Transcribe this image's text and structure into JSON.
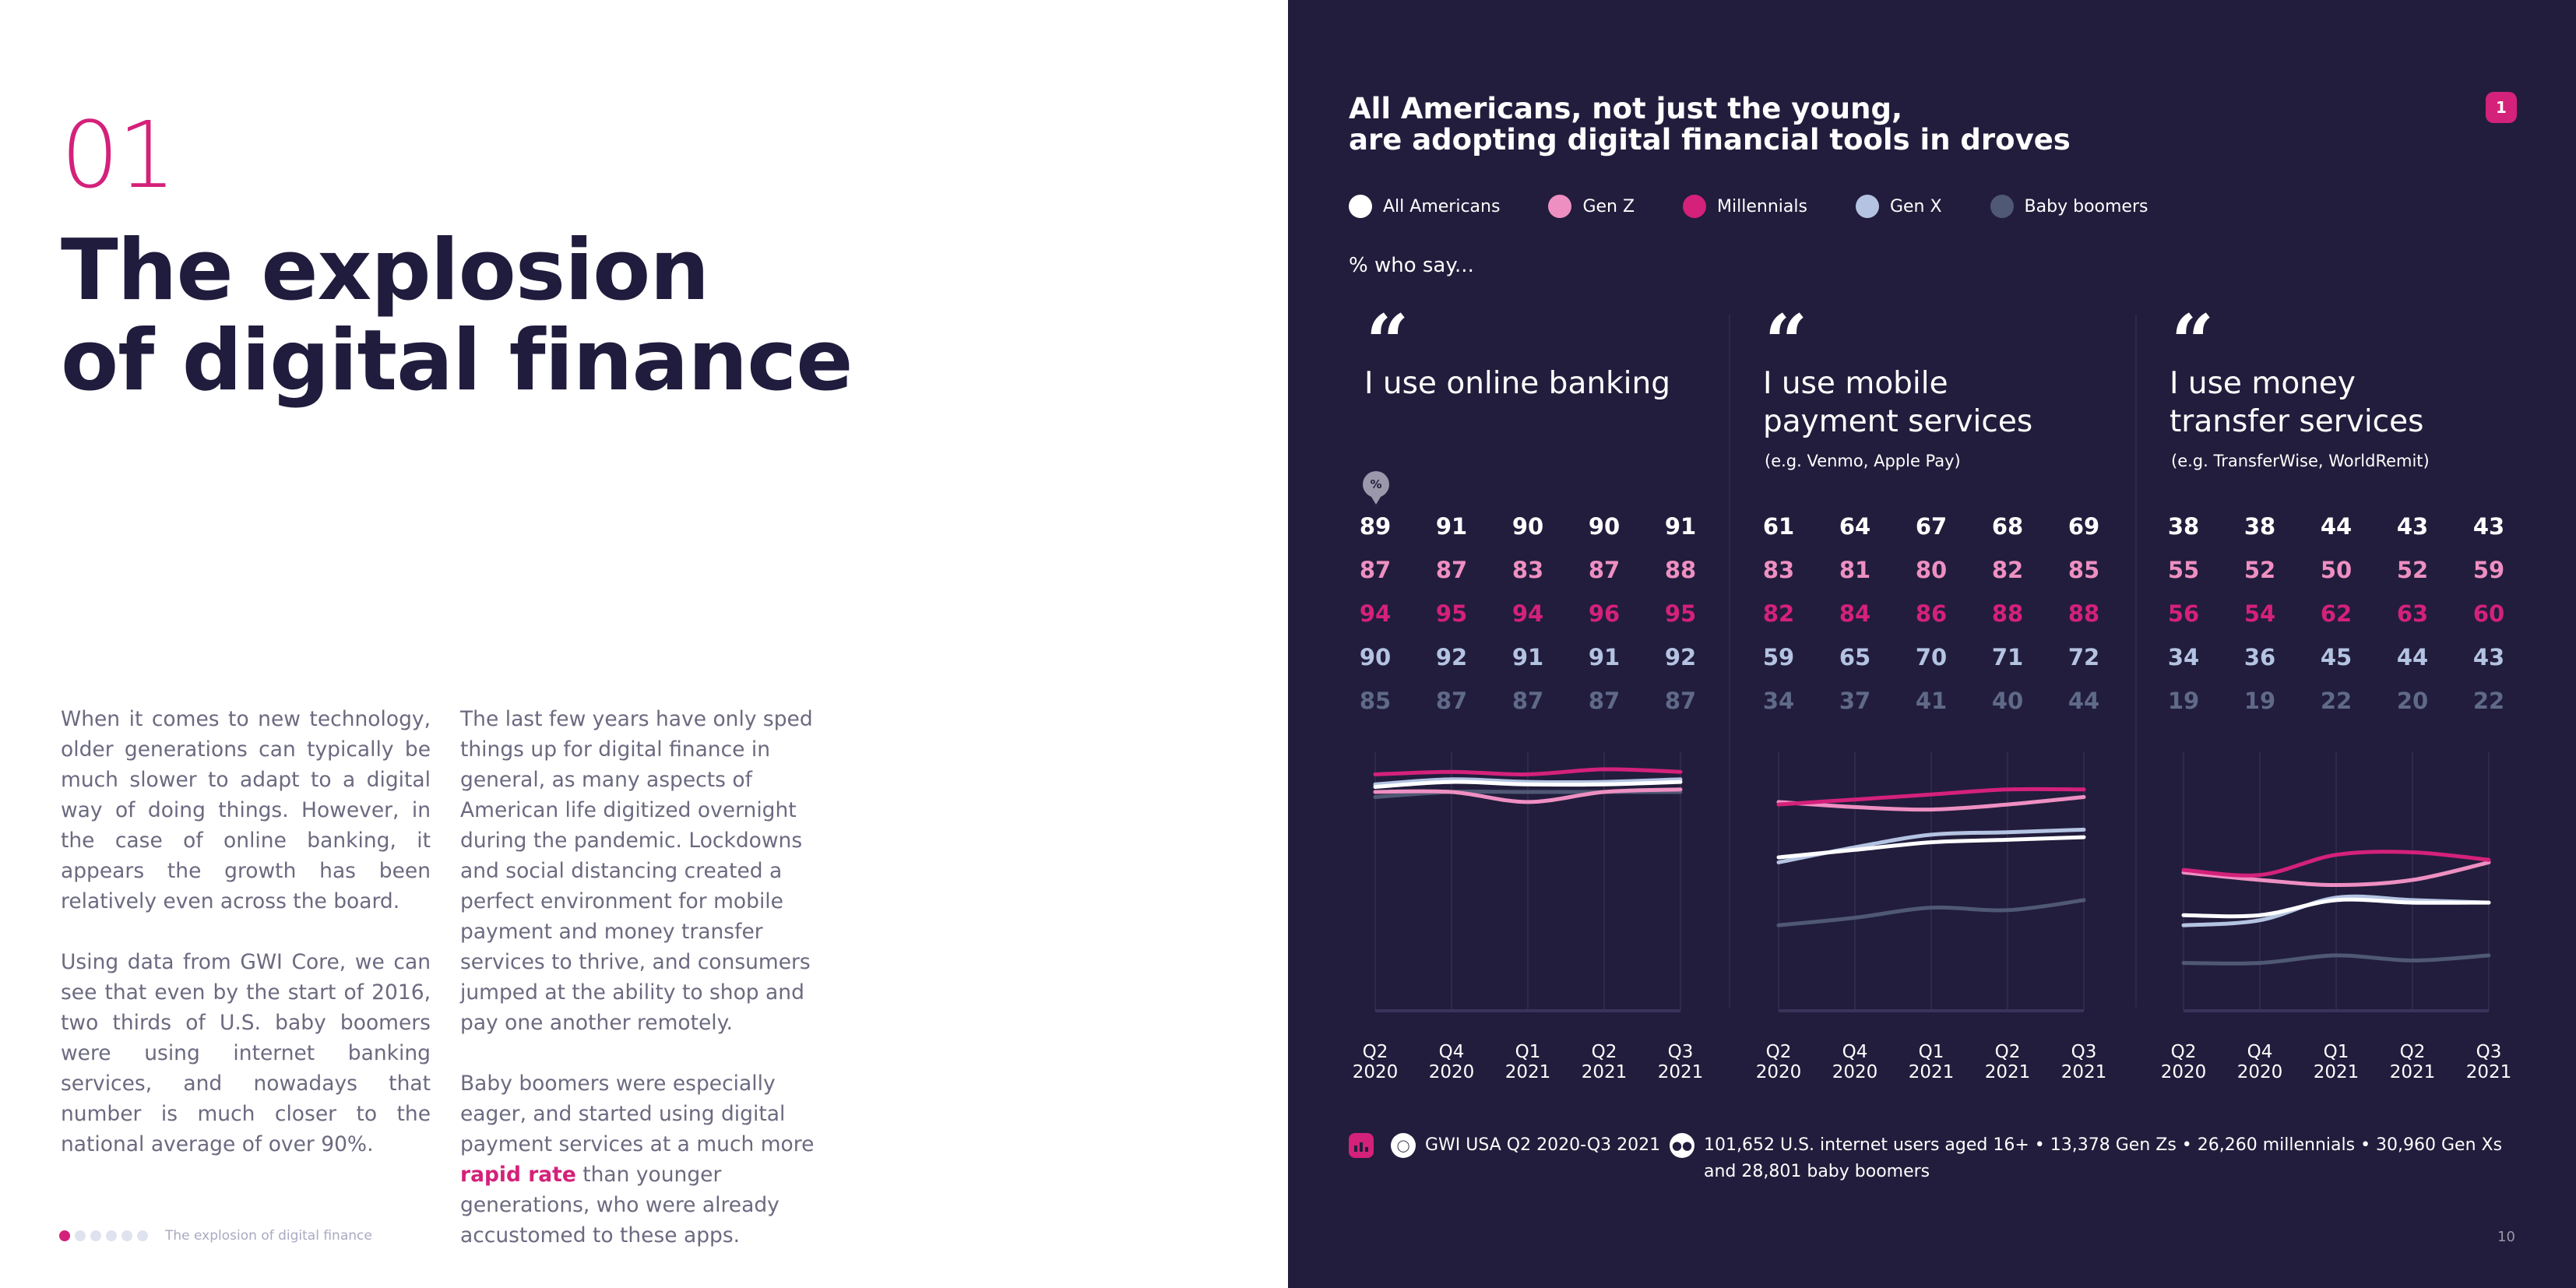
{
  "left": {
    "section_number": "01",
    "title_line1": "The explosion",
    "title_line2": "of digital finance",
    "col1": [
      "When it comes to new technology, older generations can typically be much slower to adapt to a digital way of doing things. However, in the case of online banking, it appears the growth has been relatively even across the board.",
      "Using data from GWI Core, we can see that even by the start of 2016, two thirds of U.S. baby boomers were using internet banking services, and nowadays that number is much closer to the national average of over 90%."
    ],
    "col2_p1": "The last few years have only sped things up for digital finance in general, as many aspects of American life digitized over­night during the pandemic. Lockdowns and social distancing created a perfect environment for mobile payment and money transfer services to thrive, and consumers jumped at the ability to shop and pay one another remotely.",
    "col2_p2_before": "Baby boomers were especially eager, and started using digital payment ser­vices at a much more ",
    "col2_p2_highlight": "rapid rate",
    "col2_p2_after": " than younger generations, who were already accustomed to these apps.",
    "footer": "The explosion of digital finance",
    "progress_total": 6,
    "progress_current": 1
  },
  "right": {
    "title_line1": "All Americans, not just the young,",
    "title_line2": "are adopting digital financial tools in droves",
    "page_badge": "1",
    "legend": [
      {
        "label": "All Americans",
        "color": "#ffffff"
      },
      {
        "label": "Gen Z",
        "color": "#ee8fc2"
      },
      {
        "label": "Millennials",
        "color": "#d4217a"
      },
      {
        "label": "Gen X",
        "color": "#b4c3e2"
      },
      {
        "label": "Baby boomers",
        "color": "#4f5874"
      }
    ],
    "who_say": "% who say...",
    "quote_mark": "“",
    "pct_icon": "%",
    "source_text": "GWI USA Q2 2020-Q3 2021",
    "sample_text": "101,652 U.S. internet users aged 16+ • 13,378 Gen Zs • 26,260 millennials • 30,960 Gen Xs and 28,801 baby boomers",
    "page_number": "10"
  },
  "chart_data": [
    {
      "type": "line",
      "title_line1": "I use online banking",
      "title_line2": "",
      "subtitle": "",
      "categories": [
        "Q2 2020",
        "Q4 2020",
        "Q1 2021",
        "Q2 2021",
        "Q3 2021"
      ],
      "tick_line1": [
        "Q2",
        "Q4",
        "Q1",
        "Q2",
        "Q3"
      ],
      "tick_line2": [
        "2020",
        "2020",
        "2021",
        "2021",
        "2021"
      ],
      "ylim": [
        0,
        100
      ],
      "series": [
        {
          "name": "All Americans",
          "values": [
            89,
            91,
            90,
            90,
            91
          ]
        },
        {
          "name": "Gen Z",
          "values": [
            87,
            87,
            83,
            87,
            88
          ]
        },
        {
          "name": "Millennials",
          "values": [
            94,
            95,
            94,
            96,
            95
          ]
        },
        {
          "name": "Gen X",
          "values": [
            90,
            92,
            91,
            91,
            92
          ]
        },
        {
          "name": "Baby boomers",
          "values": [
            85,
            87,
            87,
            87,
            87
          ]
        }
      ]
    },
    {
      "type": "line",
      "title_line1": "I use mobile",
      "title_line2": "payment services",
      "subtitle": "(e.g. Venmo, Apple Pay)",
      "categories": [
        "Q2 2020",
        "Q4 2020",
        "Q1 2021",
        "Q2 2021",
        "Q3 2021"
      ],
      "tick_line1": [
        "Q2",
        "Q4",
        "Q1",
        "Q2",
        "Q3"
      ],
      "tick_line2": [
        "2020",
        "2020",
        "2021",
        "2021",
        "2021"
      ],
      "ylim": [
        0,
        100
      ],
      "series": [
        {
          "name": "All Americans",
          "values": [
            61,
            64,
            67,
            68,
            69
          ]
        },
        {
          "name": "Gen Z",
          "values": [
            83,
            81,
            80,
            82,
            85
          ]
        },
        {
          "name": "Millennials",
          "values": [
            82,
            84,
            86,
            88,
            88
          ]
        },
        {
          "name": "Gen X",
          "values": [
            59,
            65,
            70,
            71,
            72
          ]
        },
        {
          "name": "Baby boomers",
          "values": [
            34,
            37,
            41,
            40,
            44
          ]
        }
      ]
    },
    {
      "type": "line",
      "title_line1": "I use money",
      "title_line2": "transfer services",
      "subtitle": "(e.g. TransferWise, WorldRemit)",
      "categories": [
        "Q2 2020",
        "Q4 2020",
        "Q1 2021",
        "Q2 2021",
        "Q3 2021"
      ],
      "tick_line1": [
        "Q2",
        "Q4",
        "Q1",
        "Q2",
        "Q3"
      ],
      "tick_line2": [
        "2020",
        "2020",
        "2021",
        "2021",
        "2021"
      ],
      "ylim": [
        0,
        100
      ],
      "series": [
        {
          "name": "All Americans",
          "values": [
            38,
            38,
            44,
            43,
            43
          ]
        },
        {
          "name": "Gen Z",
          "values": [
            55,
            52,
            50,
            52,
            59
          ]
        },
        {
          "name": "Millennials",
          "values": [
            56,
            54,
            62,
            63,
            60
          ]
        },
        {
          "name": "Gen X",
          "values": [
            34,
            36,
            45,
            44,
            43
          ]
        },
        {
          "name": "Baby boomers",
          "values": [
            19,
            19,
            22,
            20,
            22
          ]
        }
      ]
    }
  ]
}
